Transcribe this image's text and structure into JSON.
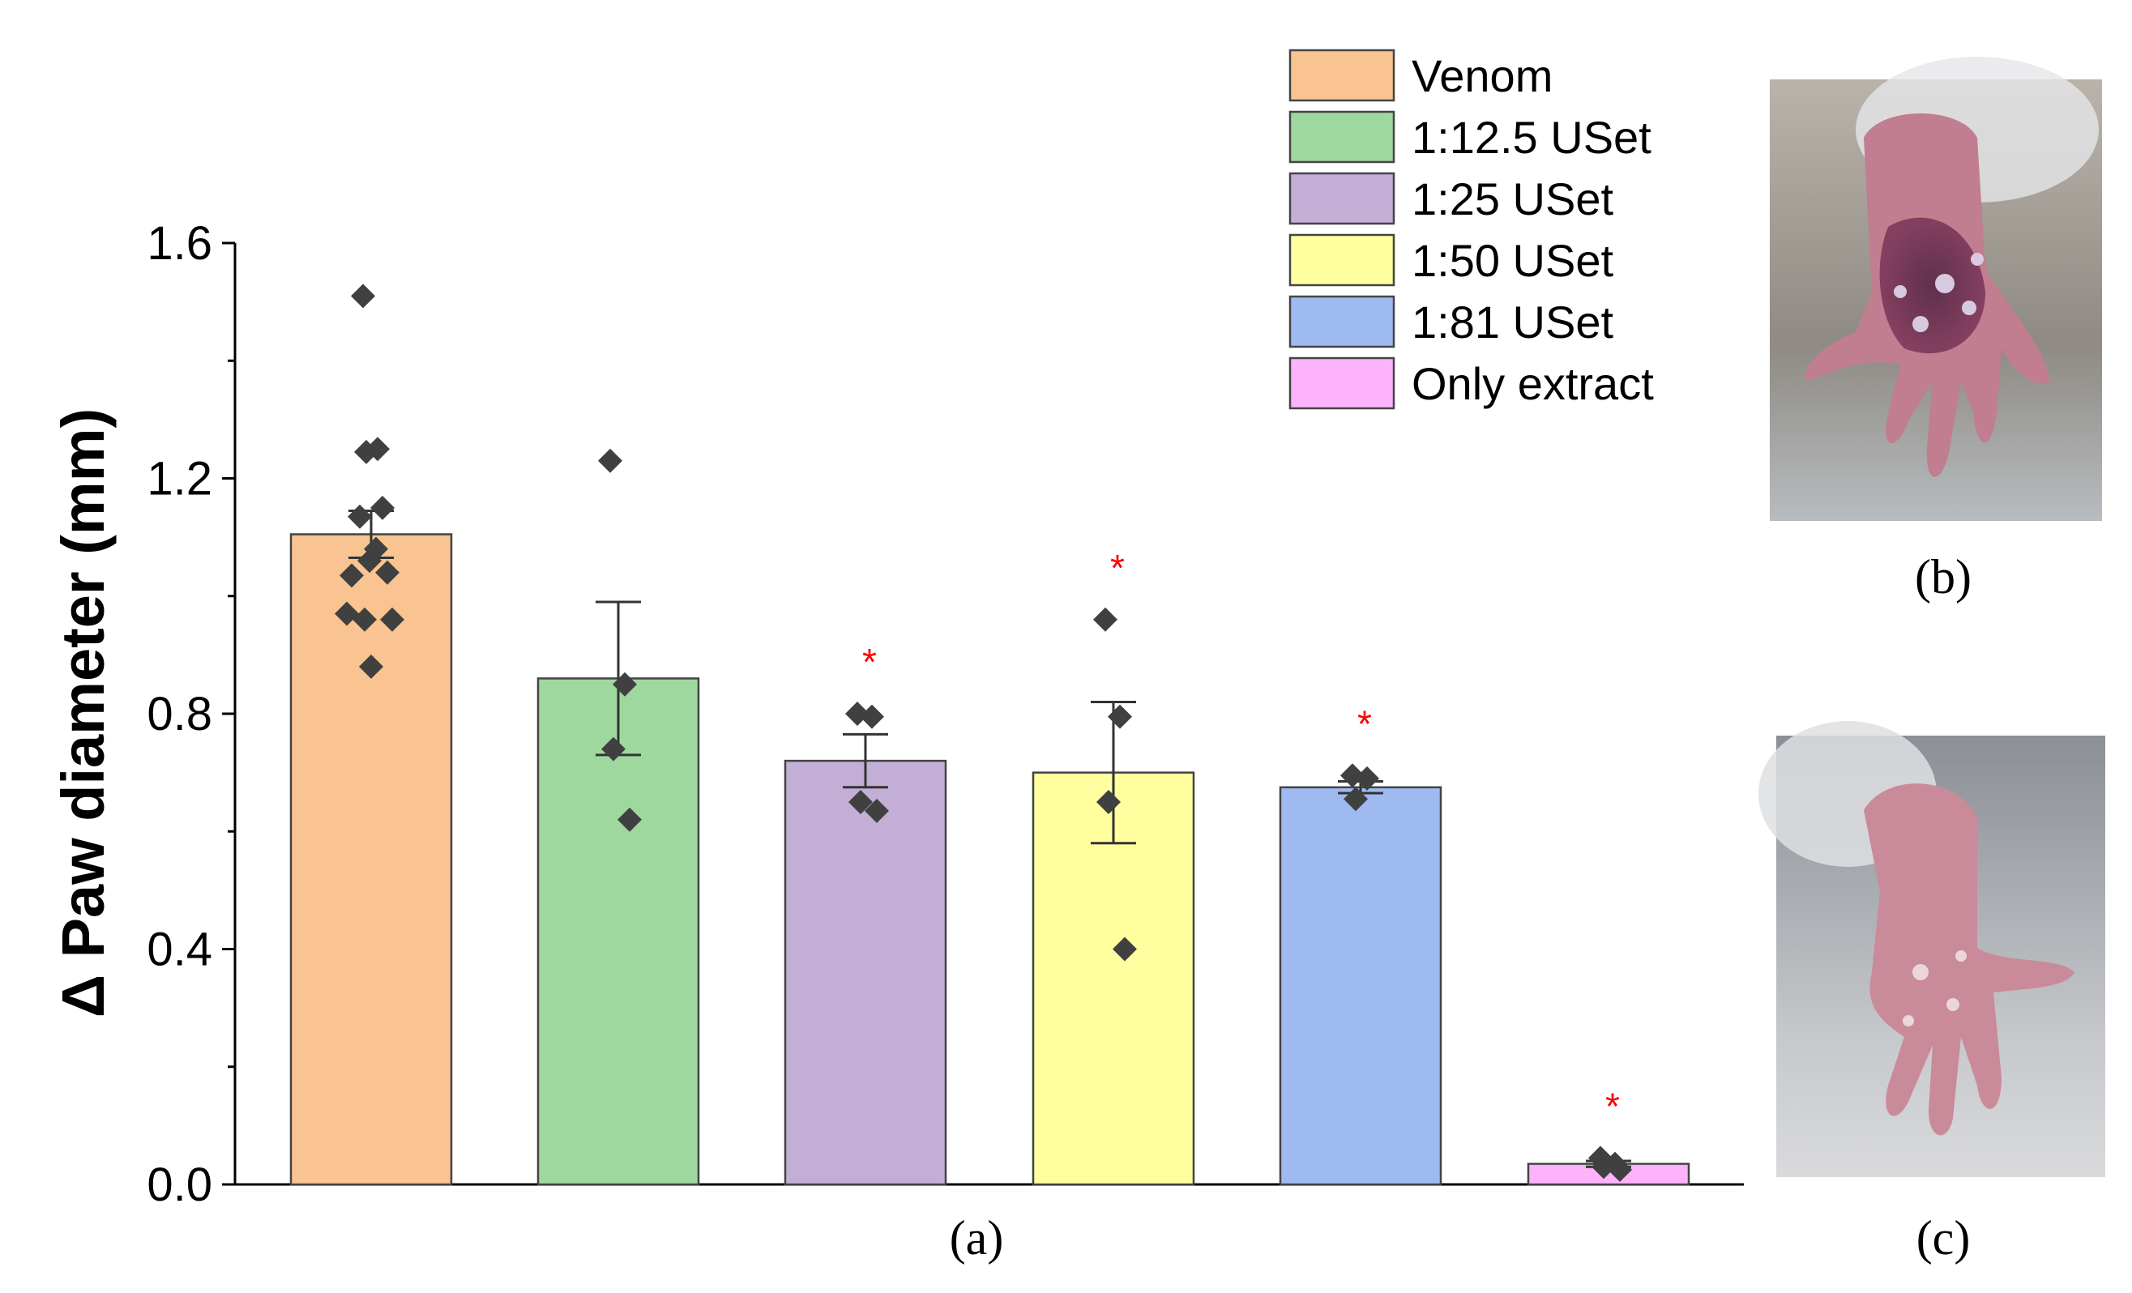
{
  "chart_data": {
    "type": "bar",
    "ylabel": "Δ Paw diameter (mm)",
    "xlabel": "(a)",
    "ylim": [
      0,
      1.6
    ],
    "yticks": [
      "0.0",
      "0.4",
      "0.8",
      "1.2",
      "1.6"
    ],
    "legend_placement": "top-right",
    "series": [
      {
        "name": "Venom",
        "value": 1.105,
        "error": 0.04,
        "color": "#f9c491",
        "points": [
          1.51,
          1.25,
          1.245,
          1.15,
          1.135,
          1.08,
          1.06,
          1.04,
          1.035,
          0.97,
          0.96,
          0.96,
          0.88
        ],
        "significant": false
      },
      {
        "name": "1:12.5 USet",
        "value": 0.86,
        "error": 0.13,
        "color": "#9fd89f",
        "points": [
          1.23,
          0.85,
          0.74,
          0.62
        ],
        "significant": false
      },
      {
        "name": "1:25 USet",
        "value": 0.72,
        "error": 0.045,
        "color": "#c3afd6",
        "points": [
          0.8,
          0.795,
          0.65,
          0.635
        ],
        "significant": true
      },
      {
        "name": "1:50 USet",
        "value": 0.7,
        "error": 0.12,
        "color": "#ffff9f",
        "points": [
          0.96,
          0.795,
          0.65,
          0.4
        ],
        "significant": true
      },
      {
        "name": "1:81 USet",
        "value": 0.675,
        "error": 0.01,
        "color": "#9fbaf1",
        "points": [
          0.695,
          0.69,
          0.655
        ],
        "significant": true
      },
      {
        "name": "Only extract",
        "value": 0.035,
        "error": 0.005,
        "color": "#fdb3fb",
        "points": [
          0.045,
          0.035,
          0.03,
          0.025
        ],
        "significant": true
      }
    ],
    "significance_marker": "*",
    "bar_border_color": "#444444",
    "point_color": "#404040",
    "star_color": "#ff0000"
  },
  "panels": {
    "b_label": "(b)",
    "c_label": "(c)"
  }
}
